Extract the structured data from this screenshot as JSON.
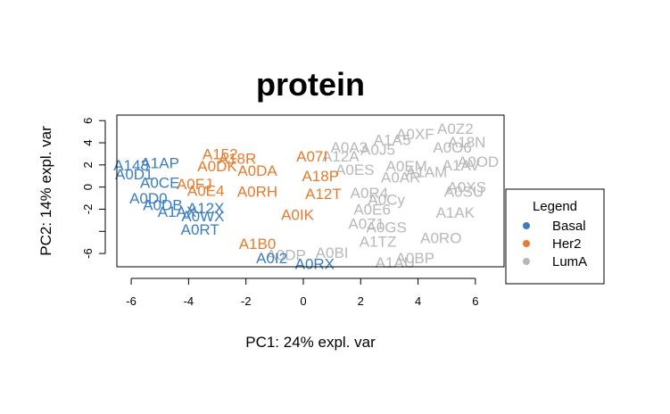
{
  "chart_data": {
    "type": "scatter",
    "title": "protein",
    "xlabel": "PC1: 24% expl. var",
    "ylabel": "PC2: 14% expl. var",
    "xlim": [
      -6.5,
      7
    ],
    "ylim": [
      -7.2,
      6.5
    ],
    "xticks": [
      -6,
      -4,
      -2,
      0,
      2,
      4,
      6
    ],
    "yticks": [
      -6,
      -4,
      -2,
      0,
      2,
      4,
      6
    ],
    "ytick_labels_shown": [
      "6",
      "4",
      "2",
      "0",
      "-2",
      "-6"
    ],
    "legend": {
      "title": "Legend",
      "placement": "right",
      "entries": [
        {
          "name": "Basal",
          "color": "#3a7dc1"
        },
        {
          "name": "Her2",
          "color": "#e87a2c"
        },
        {
          "name": "LumA",
          "color": "#b8b8b8"
        }
      ]
    },
    "series": [
      {
        "name": "LumA",
        "color": "#b8b8b8",
        "points": [
          {
            "label": "A0Z2",
            "x": 5.3,
            "y": 5.3
          },
          {
            "label": "A18N",
            "x": 5.7,
            "y": 4.1
          },
          {
            "label": "A0O6",
            "x": 5.2,
            "y": 3.6
          },
          {
            "label": "A0OD",
            "x": 6.1,
            "y": 2.3
          },
          {
            "label": "A1AV",
            "x": 5.5,
            "y": 2.0
          },
          {
            "label": "A0XS",
            "x": 5.7,
            "y": 0.0
          },
          {
            "label": "A0SU",
            "x": 5.6,
            "y": -0.4
          },
          {
            "label": "A1AK",
            "x": 5.3,
            "y": -2.3
          },
          {
            "label": "A0RO",
            "x": 4.8,
            "y": -4.6
          },
          {
            "label": "A0BP",
            "x": 3.9,
            "y": -6.4
          },
          {
            "label": "A1AU",
            "x": 3.2,
            "y": -6.8
          },
          {
            "label": "A0BI",
            "x": 1.0,
            "y": -5.9
          },
          {
            "label": "A0DP",
            "x": -0.6,
            "y": -6.1
          },
          {
            "label": "A1TZ",
            "x": 2.6,
            "y": -4.9
          },
          {
            "label": "A0Z1",
            "x": 2.2,
            "y": -3.3
          },
          {
            "label": "A0E6",
            "x": 2.4,
            "y": -2.0
          },
          {
            "label": "A0Cy",
            "x": 2.9,
            "y": -1.1
          },
          {
            "label": "A1AM",
            "x": 4.3,
            "y": 1.4
          },
          {
            "label": "A0AR",
            "x": 3.4,
            "y": 0.9
          },
          {
            "label": "A0R4",
            "x": 2.3,
            "y": -0.5
          },
          {
            "label": "A0J5",
            "x": 2.6,
            "y": 3.4
          },
          {
            "label": "A0A3",
            "x": 1.6,
            "y": 3.6
          },
          {
            "label": "A1A5",
            "x": 3.1,
            "y": 4.3
          },
          {
            "label": "A0XF",
            "x": 3.9,
            "y": 4.8
          },
          {
            "label": "A0EM",
            "x": 3.6,
            "y": 1.9
          },
          {
            "label": "A0GS",
            "x": 2.9,
            "y": -3.6
          },
          {
            "label": "A12A",
            "x": 1.3,
            "y": 2.8
          },
          {
            "label": "A0ES",
            "x": 1.8,
            "y": 1.6
          }
        ]
      },
      {
        "name": "Her2",
        "color": "#e87a2c",
        "points": [
          {
            "label": "A152",
            "x": -2.9,
            "y": 3.0
          },
          {
            "label": "A18R",
            "x": -2.3,
            "y": 2.6
          },
          {
            "label": "A0DA",
            "x": -1.6,
            "y": 1.5
          },
          {
            "label": "A07I",
            "x": 0.3,
            "y": 2.8
          },
          {
            "label": "A18P",
            "x": 0.6,
            "y": 1.0
          },
          {
            "label": "A0RH",
            "x": -1.6,
            "y": -0.4
          },
          {
            "label": "A12T",
            "x": 0.7,
            "y": -0.6
          },
          {
            "label": "A0IK",
            "x": -0.2,
            "y": -2.5
          },
          {
            "label": "A1B0",
            "x": -1.6,
            "y": -5.1
          },
          {
            "label": "A0DK",
            "x": -3.0,
            "y": 1.9
          },
          {
            "label": "A0FJ",
            "x": -3.8,
            "y": 0.3
          },
          {
            "label": "A0E4",
            "x": -3.4,
            "y": -0.3
          }
        ]
      },
      {
        "name": "Basal",
        "color": "#3a7dc1",
        "points": [
          {
            "label": "A143",
            "x": -6.0,
            "y": 2.0
          },
          {
            "label": "A1AP",
            "x": -5.0,
            "y": 2.2
          },
          {
            "label": "A0D1",
            "x": -5.9,
            "y": 1.2
          },
          {
            "label": "A0D0",
            "x": -5.4,
            "y": -1.0
          },
          {
            "label": "A0DB",
            "x": -4.9,
            "y": -1.6
          },
          {
            "label": "A0WX",
            "x": -3.5,
            "y": -2.6
          },
          {
            "label": "A0RT",
            "x": -3.6,
            "y": -3.8
          },
          {
            "label": "A0I2",
            "x": -1.1,
            "y": -6.4
          },
          {
            "label": "A0RX",
            "x": 0.4,
            "y": -6.9
          },
          {
            "label": "A12X",
            "x": -3.4,
            "y": -1.9
          },
          {
            "label": "A1AX",
            "x": -4.4,
            "y": -2.2
          },
          {
            "label": "A0CE",
            "x": -5.0,
            "y": 0.4
          }
        ]
      }
    ]
  }
}
